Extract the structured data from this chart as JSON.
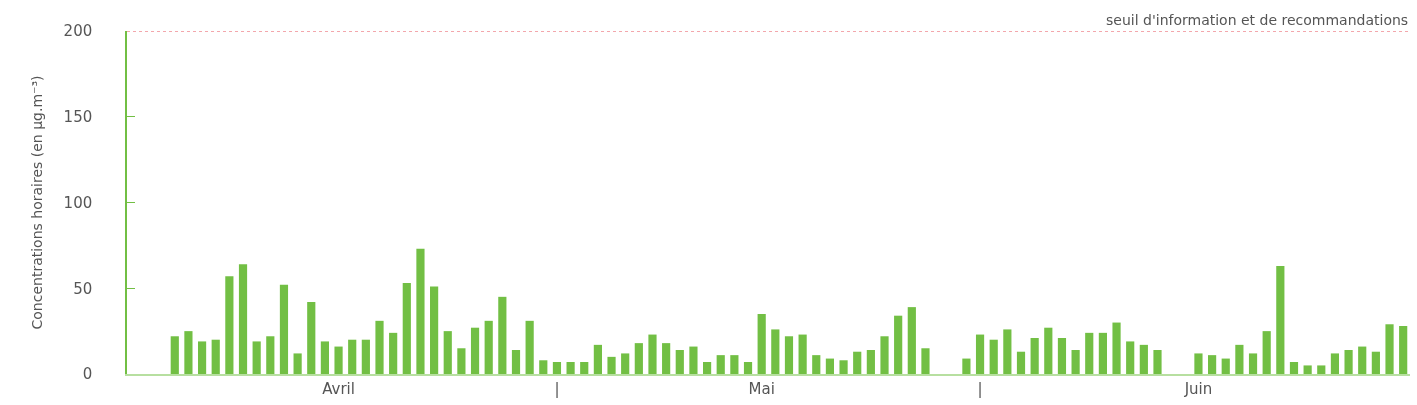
{
  "chart_data": {
    "type": "bar",
    "ylabel": "Concentrations horaires (en µg.m⁻³)",
    "categories": [
      null,
      null,
      null,
      null,
      null,
      null,
      null,
      null,
      null,
      null,
      null,
      null,
      null,
      null,
      null,
      "Avril",
      null,
      null,
      null,
      null,
      null,
      null,
      null,
      null,
      null,
      null,
      null,
      null,
      null,
      null,
      null,
      "|",
      null,
      null,
      null,
      null,
      null,
      null,
      null,
      null,
      null,
      null,
      null,
      null,
      null,
      null,
      "Mai",
      null,
      null,
      null,
      null,
      null,
      null,
      null,
      null,
      null,
      null,
      null,
      null,
      null,
      null,
      null,
      "|",
      null,
      null,
      null,
      null,
      null,
      null,
      null,
      null,
      null,
      null,
      null,
      null,
      null,
      null,
      null,
      "Juin",
      null,
      null,
      null,
      null,
      null,
      null,
      null,
      null,
      null,
      null,
      null,
      null,
      null,
      null,
      null
    ],
    "values": [
      null,
      null,
      null,
      22,
      25,
      19,
      20,
      57,
      64,
      19,
      22,
      52,
      12,
      42,
      19,
      16,
      20,
      20,
      31,
      24,
      53,
      73,
      51,
      25,
      15,
      27,
      31,
      45,
      14,
      31,
      8,
      7,
      7,
      7,
      17,
      10,
      12,
      18,
      23,
      18,
      14,
      16,
      7,
      11,
      11,
      7,
      35,
      26,
      22,
      23,
      11,
      9,
      8,
      13,
      14,
      22,
      34,
      39,
      15,
      null,
      null,
      9,
      23,
      20,
      26,
      13,
      21,
      27,
      21,
      14,
      24,
      24,
      30,
      19,
      17,
      14,
      null,
      null,
      12,
      11,
      9,
      17,
      12,
      25,
      63,
      7,
      5,
      5,
      12,
      14,
      16,
      13,
      29,
      28
    ],
    "color": "#72bf44",
    "ylim": [
      0,
      200
    ],
    "yticks": [
      0,
      50,
      100,
      150,
      200
    ],
    "ref_lines": [
      {
        "axis": "y",
        "value": 200,
        "label": "seuil d'information et de recommandations",
        "color": "#e8505b",
        "line_style": "dotted"
      }
    ]
  }
}
